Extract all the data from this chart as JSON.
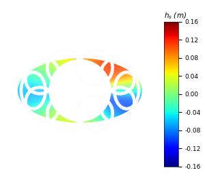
{
  "title": "",
  "colorbar_label": "$h_s$ (m)",
  "colorbar_ticks": [
    0.16,
    0.12,
    0.08,
    0.04,
    0.0,
    -0.04,
    -0.08,
    -0.12,
    -0.16
  ],
  "vmin": -0.16,
  "vmax": 0.16,
  "torus_outer_r": 0.38,
  "torus_inner_r": 0.13,
  "torus_tube_r": 0.125,
  "n_coils": 10,
  "coil_tilt_angles": [
    72,
    36,
    0,
    -36,
    -72,
    -108,
    -144,
    -180,
    -216,
    -252
  ],
  "bg_color": "#ffffff",
  "colormap": "jet"
}
